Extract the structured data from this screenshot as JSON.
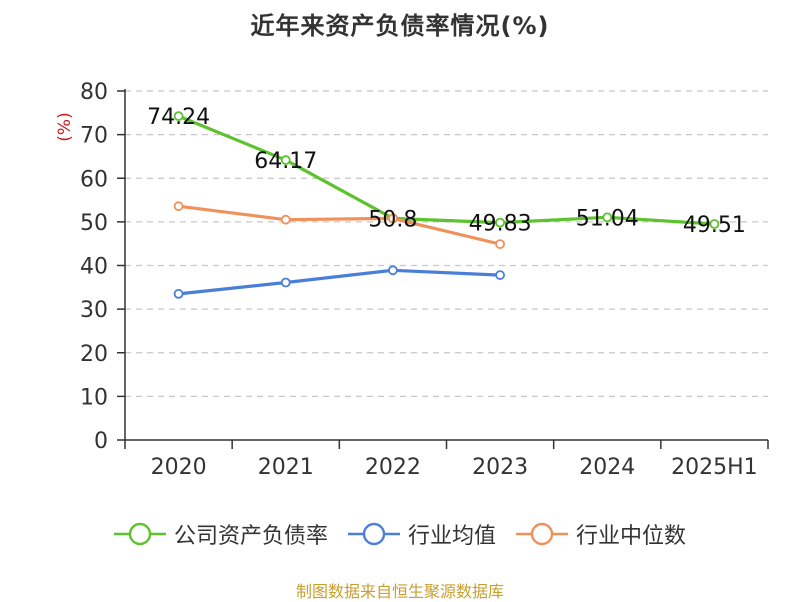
{
  "title": "近年来资产负债率情况(%)",
  "source_note": "制图数据来自恒生聚源数据库",
  "chart_data": {
    "type": "line",
    "title": "近年来资产负债率情况(%)",
    "xlabel": "",
    "ylabel": "(%)",
    "ylim": [
      0,
      80
    ],
    "yticks": [
      0,
      10,
      20,
      30,
      40,
      50,
      60,
      70,
      80
    ],
    "grid": true,
    "legend_position": "bottom",
    "categories": [
      "2020",
      "2021",
      "2022",
      "2023",
      "2024",
      "2025H1"
    ],
    "series": [
      {
        "name": "公司资产负债率",
        "color": "#5cc22d",
        "values": [
          74.24,
          64.17,
          50.8,
          49.83,
          51.04,
          49.51
        ],
        "labels": [
          "74.24",
          "64.17",
          "50.8",
          "49.83",
          "51.04",
          "49.51"
        ]
      },
      {
        "name": "行业均值",
        "color": "#4a7fd8",
        "values": [
          33.5,
          36.1,
          38.9,
          37.8,
          null,
          null
        ]
      },
      {
        "name": "行业中位数",
        "color": "#f0905a",
        "values": [
          53.6,
          50.5,
          50.8,
          44.9,
          null,
          null
        ]
      }
    ]
  }
}
